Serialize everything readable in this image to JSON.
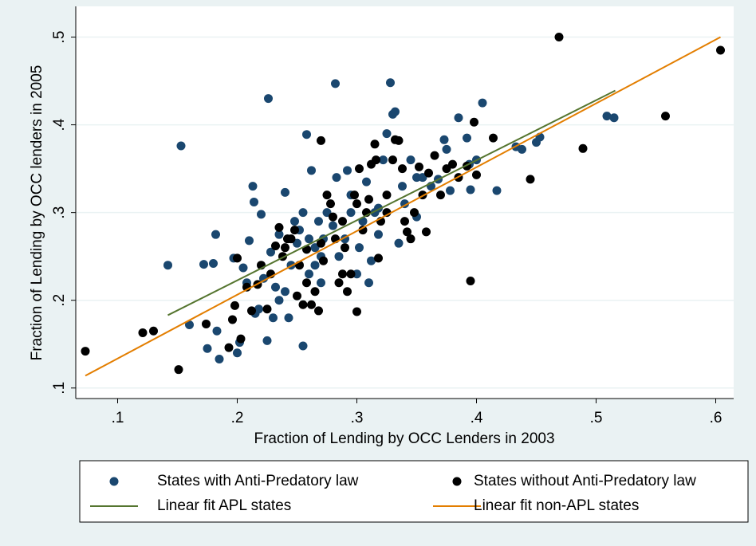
{
  "chart_data": {
    "type": "scatter",
    "x_label": "Fraction of Lending by OCC Lenders in 2003",
    "y_label": "Fraction of Lending by OCC lenders in 2005",
    "xlim": [
      0.065,
      0.615
    ],
    "ylim": [
      0.088,
      0.535
    ],
    "xticks": [
      {
        "value": 0.1,
        "label": ".1"
      },
      {
        "value": 0.2,
        "label": ".2"
      },
      {
        "value": 0.3,
        "label": ".3"
      },
      {
        "value": 0.4,
        "label": ".4"
      },
      {
        "value": 0.5,
        "label": ".5"
      },
      {
        "value": 0.6,
        "label": ".6"
      }
    ],
    "yticks": [
      {
        "value": 0.1,
        "label": ".1"
      },
      {
        "value": 0.2,
        "label": ".2"
      },
      {
        "value": 0.3,
        "label": ".3"
      },
      {
        "value": 0.4,
        "label": ".4"
      },
      {
        "value": 0.5,
        "label": ".5"
      }
    ],
    "grid": true,
    "legend": "bottom",
    "series": [
      {
        "name": "States with Anti-Predatory law",
        "type": "scatter",
        "color": "#1a476f",
        "x": [
          0.153,
          0.142,
          0.16,
          0.172,
          0.18,
          0.182,
          0.175,
          0.185,
          0.183,
          0.2,
          0.202,
          0.197,
          0.205,
          0.21,
          0.213,
          0.214,
          0.22,
          0.215,
          0.218,
          0.225,
          0.226,
          0.23,
          0.235,
          0.24,
          0.24,
          0.243,
          0.245,
          0.25,
          0.252,
          0.255,
          0.258,
          0.26,
          0.262,
          0.265,
          0.268,
          0.27,
          0.272,
          0.275,
          0.28,
          0.282,
          0.283,
          0.285,
          0.29,
          0.292,
          0.295,
          0.3,
          0.302,
          0.305,
          0.308,
          0.31,
          0.312,
          0.315,
          0.318,
          0.322,
          0.325,
          0.328,
          0.33,
          0.332,
          0.335,
          0.338,
          0.34,
          0.345,
          0.35,
          0.355,
          0.362,
          0.368,
          0.373,
          0.375,
          0.378,
          0.385,
          0.392,
          0.394,
          0.395,
          0.4,
          0.405,
          0.417,
          0.433,
          0.438,
          0.45,
          0.453,
          0.509,
          0.515,
          0.228,
          0.235,
          0.248,
          0.255,
          0.26,
          0.265,
          0.222,
          0.232,
          0.208,
          0.295,
          0.318,
          0.35,
          0.27
        ],
        "values": [
          0.376,
          0.24,
          0.172,
          0.241,
          0.242,
          0.275,
          0.145,
          0.133,
          0.165,
          0.14,
          0.152,
          0.248,
          0.237,
          0.268,
          0.33,
          0.312,
          0.298,
          0.185,
          0.19,
          0.154,
          0.43,
          0.18,
          0.2,
          0.21,
          0.323,
          0.18,
          0.24,
          0.265,
          0.28,
          0.148,
          0.389,
          0.23,
          0.348,
          0.26,
          0.29,
          0.22,
          0.27,
          0.3,
          0.285,
          0.447,
          0.34,
          0.25,
          0.27,
          0.348,
          0.3,
          0.23,
          0.26,
          0.29,
          0.335,
          0.22,
          0.245,
          0.3,
          0.275,
          0.36,
          0.39,
          0.448,
          0.412,
          0.415,
          0.265,
          0.33,
          0.31,
          0.36,
          0.34,
          0.34,
          0.33,
          0.338,
          0.383,
          0.372,
          0.325,
          0.408,
          0.385,
          0.355,
          0.326,
          0.36,
          0.425,
          0.325,
          0.375,
          0.372,
          0.38,
          0.386,
          0.41,
          0.408,
          0.255,
          0.275,
          0.29,
          0.3,
          0.27,
          0.24,
          0.225,
          0.215,
          0.22,
          0.32,
          0.305,
          0.295,
          0.25
        ]
      },
      {
        "name": "States without Anti-Predatory law",
        "type": "scatter",
        "color": "#000000",
        "x": [
          0.073,
          0.121,
          0.13,
          0.151,
          0.174,
          0.193,
          0.196,
          0.198,
          0.2,
          0.203,
          0.208,
          0.212,
          0.217,
          0.22,
          0.225,
          0.228,
          0.232,
          0.235,
          0.238,
          0.24,
          0.245,
          0.248,
          0.25,
          0.252,
          0.255,
          0.258,
          0.262,
          0.265,
          0.268,
          0.27,
          0.272,
          0.275,
          0.278,
          0.28,
          0.282,
          0.285,
          0.288,
          0.29,
          0.292,
          0.295,
          0.298,
          0.3,
          0.302,
          0.305,
          0.308,
          0.31,
          0.312,
          0.315,
          0.316,
          0.318,
          0.32,
          0.325,
          0.33,
          0.332,
          0.335,
          0.338,
          0.34,
          0.342,
          0.345,
          0.348,
          0.352,
          0.355,
          0.358,
          0.36,
          0.365,
          0.37,
          0.375,
          0.38,
          0.385,
          0.392,
          0.395,
          0.398,
          0.4,
          0.414,
          0.445,
          0.469,
          0.489,
          0.558,
          0.604,
          0.242,
          0.258,
          0.288,
          0.3,
          0.325,
          0.27
        ],
        "values": [
          0.142,
          0.163,
          0.165,
          0.121,
          0.173,
          0.146,
          0.178,
          0.194,
          0.248,
          0.156,
          0.215,
          0.188,
          0.218,
          0.24,
          0.19,
          0.23,
          0.262,
          0.283,
          0.25,
          0.26,
          0.27,
          0.28,
          0.205,
          0.24,
          0.195,
          0.22,
          0.195,
          0.21,
          0.188,
          0.382,
          0.245,
          0.32,
          0.31,
          0.295,
          0.27,
          0.22,
          0.23,
          0.26,
          0.21,
          0.23,
          0.32,
          0.187,
          0.35,
          0.28,
          0.3,
          0.315,
          0.355,
          0.378,
          0.36,
          0.248,
          0.29,
          0.32,
          0.36,
          0.383,
          0.382,
          0.35,
          0.29,
          0.278,
          0.27,
          0.3,
          0.352,
          0.32,
          0.278,
          0.345,
          0.365,
          0.32,
          0.35,
          0.355,
          0.34,
          0.353,
          0.222,
          0.403,
          0.343,
          0.385,
          0.338,
          0.5,
          0.373,
          0.41,
          0.485,
          0.27,
          0.258,
          0.29,
          0.31,
          0.3,
          0.265
        ]
      },
      {
        "name": "Linear fit APL states",
        "type": "line",
        "color": "#55752f",
        "x": [
          0.142,
          0.516
        ],
        "values": [
          0.183,
          0.439
        ]
      },
      {
        "name": "Linear fit non-APL states",
        "type": "line",
        "color": "#e37e00",
        "x": [
          0.073,
          0.604
        ],
        "values": [
          0.114,
          0.5
        ]
      }
    ]
  }
}
